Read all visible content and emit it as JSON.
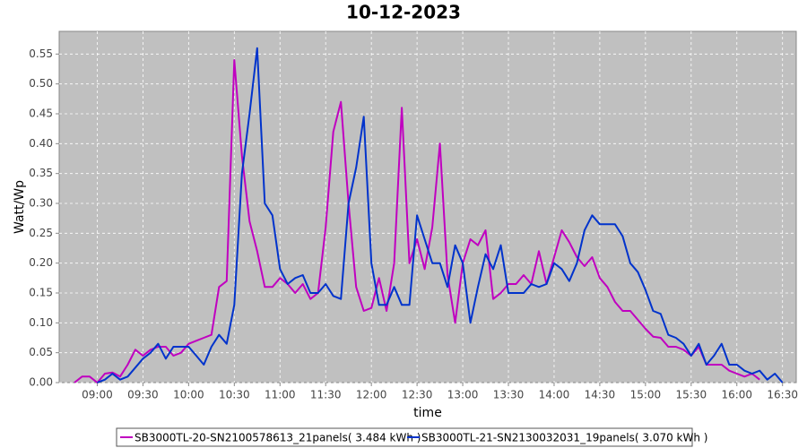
{
  "chart_data": {
    "type": "line",
    "title": "10-12-2023",
    "x_label": "time",
    "y_label": "Watt/Wp",
    "x": [
      "08:45",
      "08:50",
      "08:55",
      "09:00",
      "09:05",
      "09:10",
      "09:15",
      "09:20",
      "09:25",
      "09:30",
      "09:35",
      "09:40",
      "09:45",
      "09:50",
      "09:55",
      "10:00",
      "10:05",
      "10:10",
      "10:15",
      "10:20",
      "10:25",
      "10:30",
      "10:35",
      "10:40",
      "10:45",
      "10:50",
      "10:55",
      "11:00",
      "11:05",
      "11:10",
      "11:15",
      "11:20",
      "11:25",
      "11:30",
      "11:35",
      "11:40",
      "11:45",
      "11:50",
      "11:55",
      "12:00",
      "12:05",
      "12:10",
      "12:15",
      "12:20",
      "12:25",
      "12:30",
      "12:35",
      "12:40",
      "12:45",
      "12:50",
      "12:55",
      "13:00",
      "13:05",
      "13:10",
      "13:15",
      "13:20",
      "13:25",
      "13:30",
      "13:35",
      "13:40",
      "13:45",
      "13:50",
      "13:55",
      "14:00",
      "14:05",
      "14:10",
      "14:15",
      "14:20",
      "14:25",
      "14:30",
      "14:35",
      "14:40",
      "14:45",
      "14:50",
      "14:55",
      "15:00",
      "15:05",
      "15:10",
      "15:15",
      "15:20",
      "15:25",
      "15:30",
      "15:35",
      "15:40",
      "15:45",
      "15:50",
      "15:55",
      "16:00",
      "16:05",
      "16:10",
      "16:15",
      "16:20",
      "16:25",
      "16:30"
    ],
    "series": [
      {
        "name": "SB3000TL-20-SN2100578613_21panels( 3.484 kWh )",
        "color": "#c000c0",
        "values": [
          0,
          0.01,
          0.01,
          0,
          0.015,
          0.017,
          0.01,
          0.03,
          0.055,
          0.045,
          0.055,
          0.06,
          0.06,
          0.045,
          0.05,
          0.065,
          0.07,
          0.075,
          0.08,
          0.16,
          0.17,
          0.54,
          0.38,
          0.27,
          0.22,
          0.16,
          0.16,
          0.175,
          0.165,
          0.15,
          0.165,
          0.14,
          0.15,
          0.26,
          0.42,
          0.47,
          0.3,
          0.16,
          0.12,
          0.125,
          0.175,
          0.12,
          0.2,
          0.46,
          0.2,
          0.24,
          0.19,
          0.26,
          0.4,
          0.18,
          0.1,
          0.2,
          0.24,
          0.23,
          0.255,
          0.14,
          0.15,
          0.165,
          0.165,
          0.18,
          0.165,
          0.22,
          0.165,
          0.21,
          0.255,
          0.235,
          0.21,
          0.195,
          0.21,
          0.175,
          0.16,
          0.135,
          0.12,
          0.12,
          0.105,
          0.09,
          0.077,
          0.075,
          0.06,
          0.06,
          0.055,
          0.045,
          0.06,
          0.03,
          0.03,
          0.03,
          0.02,
          0.015,
          0.01,
          0.015,
          0.005,
          null,
          null,
          null
        ]
      },
      {
        "name": "SB3000TL-21-SN2130032031_19panels( 3.070 kWh )",
        "color": "#0033cc",
        "values": [
          null,
          null,
          null,
          0,
          0.005,
          0.015,
          0.005,
          0.01,
          0.025,
          0.04,
          0.05,
          0.065,
          0.04,
          0.06,
          0.06,
          0.06,
          0.045,
          0.03,
          0.06,
          0.08,
          0.065,
          0.13,
          0.35,
          0.45,
          0.56,
          0.3,
          0.28,
          0.19,
          0.165,
          0.175,
          0.18,
          0.15,
          0.15,
          0.165,
          0.145,
          0.14,
          0.3,
          0.36,
          0.445,
          0.2,
          0.13,
          0.13,
          0.16,
          0.13,
          0.13,
          0.28,
          0.24,
          0.2,
          0.2,
          0.16,
          0.23,
          0.2,
          0.1,
          0.16,
          0.215,
          0.19,
          0.23,
          0.15,
          0.15,
          0.15,
          0.165,
          0.16,
          0.165,
          0.2,
          0.19,
          0.17,
          0.2,
          0.255,
          0.28,
          0.265,
          0.265,
          0.265,
          0.245,
          0.2,
          0.185,
          0.155,
          0.12,
          0.115,
          0.08,
          0.075,
          0.065,
          0.045,
          0.065,
          0.03,
          0.045,
          0.065,
          0.03,
          0.03,
          0.02,
          0.015,
          0.02,
          0.005,
          0.015,
          0
        ]
      }
    ],
    "xlim": [
      "08:35",
      "16:39"
    ],
    "xticks": [
      "09:00",
      "09:30",
      "10:00",
      "10:30",
      "11:00",
      "11:30",
      "12:00",
      "12:30",
      "13:00",
      "13:30",
      "14:00",
      "14:30",
      "15:00",
      "15:30",
      "16:00",
      "16:30"
    ],
    "ylim": [
      0,
      0.588
    ],
    "yticks": [
      {
        "value": 0,
        "label": "0.00"
      },
      {
        "value": 0.05,
        "label": "0.05"
      },
      {
        "value": 0.1,
        "label": "0.10"
      },
      {
        "value": 0.15,
        "label": "0.15"
      },
      {
        "value": 0.2,
        "label": "0.20"
      },
      {
        "value": 0.25,
        "label": "0.25"
      },
      {
        "value": 0.3,
        "label": "0.30"
      },
      {
        "value": 0.35,
        "label": "0.35"
      },
      {
        "value": 0.4,
        "label": "0.40"
      },
      {
        "value": 0.45,
        "label": "0.45"
      },
      {
        "value": 0.5,
        "label": "0.50"
      },
      {
        "value": 0.55,
        "label": "0.55"
      }
    ],
    "grid": true,
    "legend": "bottom"
  }
}
